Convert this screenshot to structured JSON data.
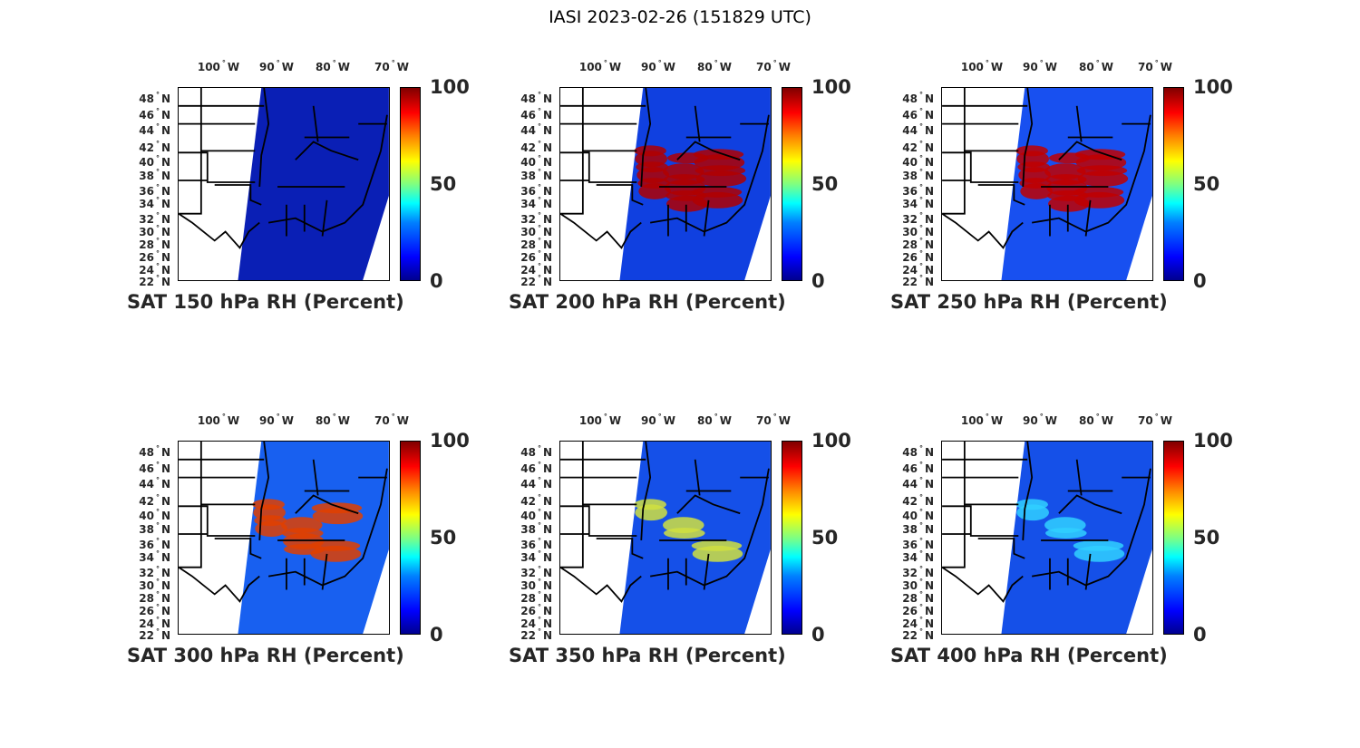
{
  "figure_title": "IASI 2023-02-26 (151829 UTC)",
  "lon_labels": [
    "100",
    "90",
    "80",
    "70"
  ],
  "lon_suffix": "W",
  "lat_labels": [
    "48",
    "46",
    "44",
    "42",
    "40",
    "38",
    "36",
    "34",
    "32",
    "30",
    "28",
    "26",
    "24",
    "22"
  ],
  "lat_suffix": "N",
  "colorbar": {
    "ticks": [
      "100",
      "50",
      "0"
    ],
    "min": 0,
    "max": 100,
    "colormap": "jet"
  },
  "panels": [
    {
      "title": "SAT 150 hPa RH (Percent)",
      "base_color": "#0a1fb5",
      "moist_color": "#0000a0",
      "moist_level": 0
    },
    {
      "title": "SAT 200 hPa RH (Percent)",
      "base_color": "#1040e0",
      "moist_color": "#b00000",
      "moist_level": 3
    },
    {
      "title": "SAT 250 hPa RH (Percent)",
      "base_color": "#1850f0",
      "moist_color": "#c00000",
      "moist_level": 3
    },
    {
      "title": "SAT 300 hPa RH (Percent)",
      "base_color": "#1860f0",
      "moist_color": "#e04000",
      "moist_level": 2
    },
    {
      "title": "SAT 350 hPa RH (Percent)",
      "base_color": "#1550e8",
      "moist_color": "#d0e040",
      "moist_level": 1
    },
    {
      "title": "SAT 400 hPa RH (Percent)",
      "base_color": "#1550e8",
      "moist_color": "#30d0ff",
      "moist_level": 1
    }
  ]
}
